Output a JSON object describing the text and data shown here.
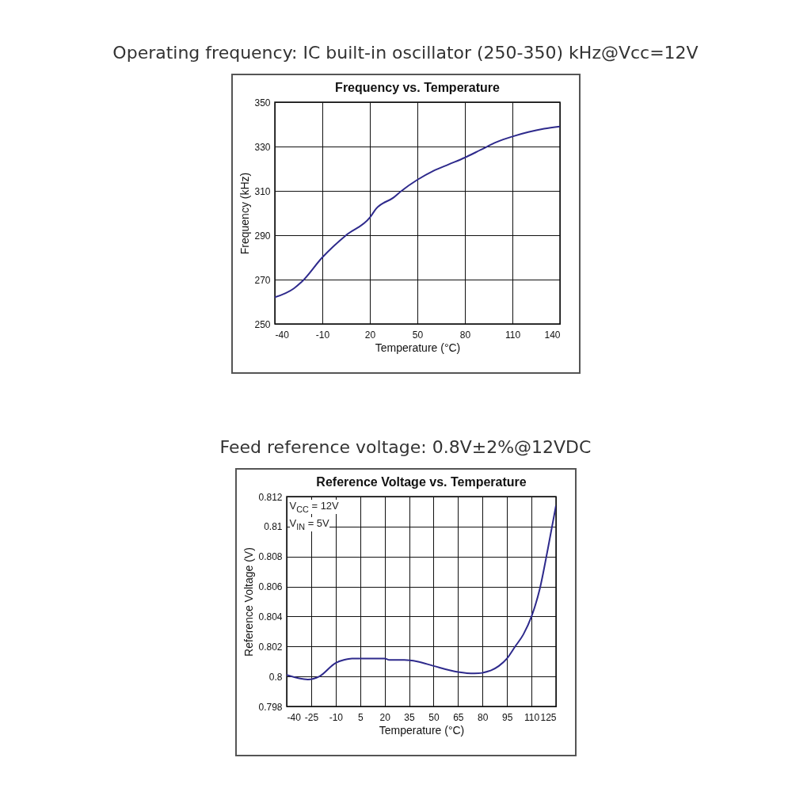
{
  "chart_data": [
    {
      "type": "line",
      "title": "Frequency vs. Temperature",
      "subtitle": "Operating frequency: IC built-in oscillator (250-350) kHz@Vcc=12V",
      "xlabel": "Temperature (°C)",
      "ylabel": "Frequency (kHz)",
      "x": [
        -40,
        -28,
        -23,
        -10,
        5,
        20,
        24,
        35,
        40,
        50,
        60,
        70,
        80,
        90,
        100,
        110,
        120,
        130,
        140
      ],
      "series": [
        {
          "color": "#2e2a8c",
          "values": [
            262,
            266,
            269,
            280,
            290,
            298,
            302,
            307,
            310,
            315,
            319,
            322,
            325,
            328.5,
            332,
            334.5,
            336.5,
            338,
            339
          ]
        }
      ],
      "xlim": [
        -40,
        140
      ],
      "xticks": [
        -40,
        -10,
        20,
        50,
        80,
        110,
        140
      ],
      "ylim": [
        250,
        350
      ],
      "yticks": [
        250,
        270,
        290,
        310,
        330,
        350
      ],
      "grid": true
    },
    {
      "type": "line",
      "title": "Reference Voltage vs. Temperature",
      "subtitle": "Feed reference voltage: 0.8V±2%@12VDC",
      "xlabel": "Temperature (°C)",
      "ylabel": "Reference Voltage (V)",
      "annotations": [
        "V$_{CC}$ = 12V",
        "V$_{IN}$ = 5V"
      ],
      "x": [
        -40,
        -27,
        -20,
        -10,
        -5,
        0,
        20,
        23,
        32,
        40,
        50,
        65,
        75,
        85,
        90,
        95,
        100,
        105,
        110,
        115,
        120,
        125
      ],
      "series": [
        {
          "color": "#2e2a8c",
          "values": [
            0.8001,
            0.7998,
            0.8,
            0.8009,
            0.8011,
            0.8012,
            0.8012,
            0.8011,
            0.8011,
            0.801,
            0.8007,
            0.8003,
            0.8002,
            0.8004,
            0.8007,
            0.8012,
            0.802,
            0.8028,
            0.804,
            0.8058,
            0.8085,
            0.8114
          ]
        }
      ],
      "xlim": [
        -40,
        125
      ],
      "xticks": [
        -40,
        -25,
        -10,
        5,
        20,
        35,
        50,
        65,
        80,
        95,
        110,
        125
      ],
      "ylim": [
        0.798,
        0.812
      ],
      "yticks": [
        0.798,
        0.8,
        0.802,
        0.804,
        0.806,
        0.808,
        0.81,
        0.812
      ],
      "grid": true
    }
  ]
}
